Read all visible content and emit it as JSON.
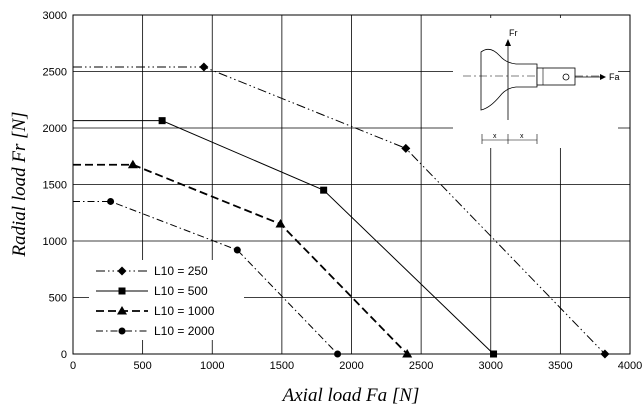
{
  "chart_data": {
    "type": "line",
    "title": "",
    "xlabel": "Axial load Fa [N]",
    "ylabel": "Radial load Fr [N]",
    "xlim": [
      0,
      4000
    ],
    "ylim": [
      0,
      3000
    ],
    "xticks": [
      0,
      500,
      1000,
      1500,
      2000,
      2500,
      3000,
      3500,
      4000
    ],
    "yticks": [
      0,
      500,
      1000,
      1500,
      2000,
      2500,
      3000
    ],
    "grid": true,
    "legend_position": "bottom-left",
    "series": [
      {
        "name": "L10 = 250",
        "marker": "diamond",
        "dash": "dash-dot-dot",
        "stroke_width": 1,
        "x": [
          0,
          940,
          2390,
          3820
        ],
        "y": [
          2540,
          2540,
          1820,
          0
        ]
      },
      {
        "name": "L10 = 500",
        "marker": "square",
        "dash": "solid",
        "stroke_width": 1,
        "x": [
          0,
          640,
          1800,
          3020
        ],
        "y": [
          2065,
          2065,
          1450,
          0
        ]
      },
      {
        "name": "L10 = 1000",
        "marker": "triangle",
        "dash": "dash",
        "stroke_width": 1.8,
        "x": [
          0,
          430,
          1490,
          2400
        ],
        "y": [
          1675,
          1675,
          1150,
          0
        ]
      },
      {
        "name": "L10 = 2000",
        "marker": "circle",
        "dash": "dash-dot",
        "stroke_width": 1,
        "x": [
          0,
          270,
          1180,
          1900
        ],
        "y": [
          1350,
          1350,
          920,
          0
        ]
      }
    ],
    "inset": {
      "labels": {
        "fr": "Fr",
        "fa": "Fa",
        "x1": "x",
        "x2": "x"
      }
    }
  }
}
